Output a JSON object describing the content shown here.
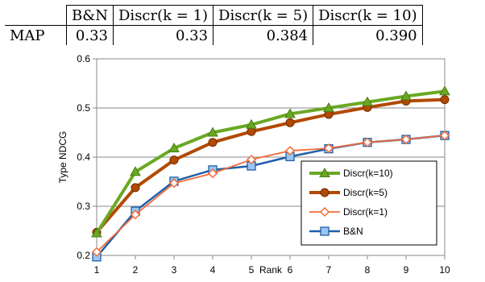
{
  "table": {
    "headers": [
      "",
      "B&N",
      "Discr(k = 1)",
      "Discr(k = 5)",
      "Discr(k = 10)"
    ],
    "row_label": "MAP",
    "values": [
      "0.33",
      "0.33",
      "0.384",
      "0.390"
    ]
  },
  "chart_data": {
    "type": "line",
    "title": "",
    "xlabel": "Rank",
    "ylabel": "Type NDCG",
    "x": [
      1,
      2,
      3,
      4,
      5,
      6,
      7,
      8,
      9,
      10
    ],
    "x_tick_labels": [
      "1",
      "2",
      "3",
      "4",
      "5",
      "6",
      "7",
      "8",
      "9",
      "10"
    ],
    "ylim": [
      0.2,
      0.6
    ],
    "y_ticks": [
      "0.2",
      "0.3",
      "0.4",
      "0.5",
      "0.6"
    ],
    "grid": true,
    "legend_position": "bottom-right",
    "series": [
      {
        "name": "Discr(k=10)",
        "color": "#6aa823",
        "marker": "triangle",
        "values": [
          0.245,
          0.37,
          0.418,
          0.45,
          0.466,
          0.488,
          0.5,
          0.512,
          0.524,
          0.534
        ]
      },
      {
        "name": "Discr(k=5)",
        "color": "#b24a00",
        "marker": "circle",
        "values": [
          0.247,
          0.338,
          0.394,
          0.43,
          0.452,
          0.47,
          0.487,
          0.501,
          0.514,
          0.517
        ]
      },
      {
        "name": "Discr(k=1)",
        "color": "#f26b3a",
        "marker": "diamond",
        "values": [
          0.207,
          0.283,
          0.347,
          0.367,
          0.395,
          0.413,
          0.418,
          0.43,
          0.436,
          0.444
        ]
      },
      {
        "name": "B&N",
        "color": "#1f5fa8",
        "marker": "square",
        "values": [
          0.197,
          0.29,
          0.351,
          0.374,
          0.382,
          0.401,
          0.417,
          0.43,
          0.436,
          0.444
        ]
      }
    ]
  }
}
